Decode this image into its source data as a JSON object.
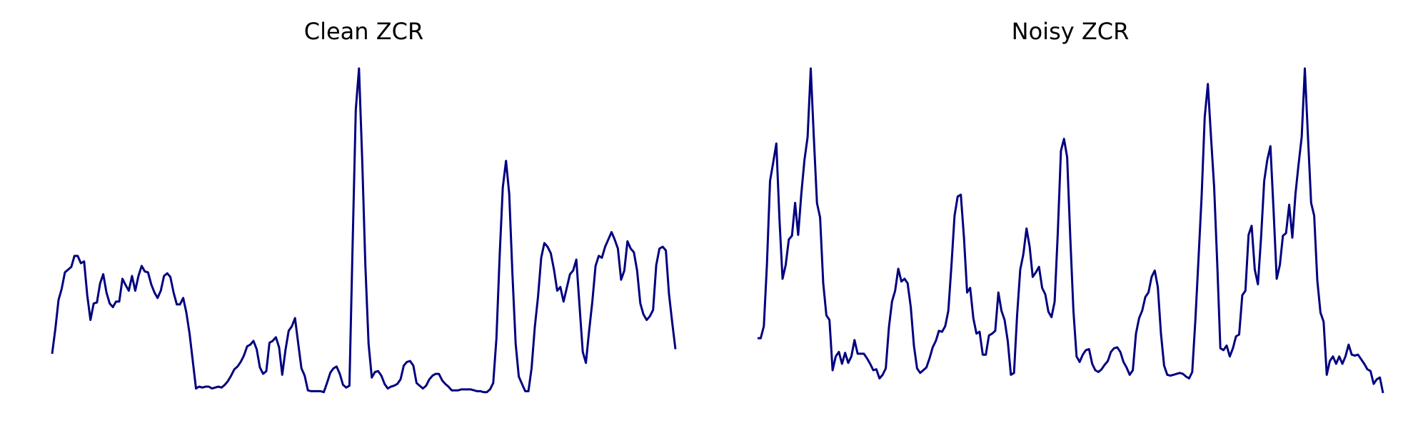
{
  "chart_data": [
    {
      "type": "line",
      "title": "Clean ZCR",
      "color": "#000080",
      "ylim": [
        0,
        355
      ],
      "values": [
        43,
        70,
        102,
        114,
        132,
        135,
        138,
        150,
        150,
        142,
        144,
        107,
        80,
        98,
        99,
        120,
        130,
        110,
        98,
        94,
        100,
        100,
        125,
        118,
        112,
        128,
        112,
        128,
        139,
        133,
        132,
        119,
        110,
        104,
        112,
        128,
        131,
        127,
        110,
        97,
        97,
        104,
        88,
        65,
        35,
        5,
        7,
        6,
        7,
        7,
        5,
        6,
        7,
        6,
        9,
        13,
        19,
        26,
        29,
        34,
        41,
        51,
        53,
        57,
        48,
        28,
        21,
        24,
        55,
        57,
        61,
        50,
        20,
        47,
        68,
        73,
        82,
        54,
        27,
        19,
        3,
        2,
        2,
        2,
        2,
        1,
        11,
        22,
        27,
        29,
        21,
        9,
        6,
        8,
        160,
        310,
        355,
        255,
        140,
        54,
        17,
        23,
        24,
        19,
        10,
        5,
        7,
        8,
        10,
        15,
        30,
        34,
        35,
        30,
        11,
        8,
        5,
        8,
        15,
        19,
        21,
        21,
        14,
        10,
        7,
        3,
        3,
        3,
        4,
        4,
        4,
        4,
        3,
        2,
        2,
        1,
        1,
        4,
        11,
        60,
        150,
        225,
        254,
        218,
        130,
        54,
        18,
        10,
        2,
        2,
        27,
        72,
        105,
        148,
        164,
        160,
        153,
        135,
        112,
        116,
        100,
        115,
        130,
        134,
        146,
        95,
        45,
        33,
        68,
        100,
        139,
        150,
        148,
        160,
        168,
        176,
        168,
        158,
        124,
        134,
        166,
        158,
        154,
        134,
        98,
        86,
        80,
        84,
        91,
        140,
        158,
        160,
        156,
        108,
        77,
        48
      ]
    },
    {
      "type": "line",
      "title": "Noisy ZCR",
      "color": "#000080",
      "ylim": [
        0,
        355
      ],
      "values": [
        60,
        60,
        73,
        140,
        232,
        252,
        273,
        190,
        125,
        140,
        168,
        172,
        208,
        173,
        218,
        255,
        280,
        355,
        280,
        208,
        192,
        120,
        85,
        80,
        25,
        40,
        45,
        32,
        44,
        33,
        40,
        58,
        43,
        43,
        43,
        38,
        32,
        25,
        26,
        16,
        20,
        27,
        72,
        100,
        112,
        136,
        122,
        125,
        120,
        94,
        52,
        27,
        22,
        25,
        28,
        38,
        50,
        57,
        68,
        67,
        73,
        90,
        140,
        194,
        215,
        217,
        170,
        110,
        115,
        82,
        65,
        67,
        42,
        42,
        63,
        65,
        68,
        110,
        90,
        80,
        57,
        20,
        22,
        85,
        135,
        152,
        180,
        160,
        127,
        132,
        138,
        115,
        108,
        89,
        83,
        100,
        175,
        265,
        278,
        258,
        170,
        90,
        40,
        34,
        42,
        47,
        48,
        32,
        25,
        23,
        26,
        31,
        35,
        45,
        49,
        50,
        45,
        34,
        28,
        20,
        25,
        65,
        82,
        90,
        105,
        110,
        127,
        134,
        116,
        65,
        30,
        20,
        19,
        20,
        21,
        22,
        21,
        18,
        16,
        23,
        80,
        147,
        216,
        302,
        338,
        280,
        225,
        140,
        49,
        47,
        52,
        40,
        49,
        62,
        64,
        107,
        112,
        173,
        183,
        135,
        119,
        170,
        232,
        255,
        270,
        200,
        125,
        140,
        172,
        175,
        206,
        170,
        218,
        250,
        280,
        355,
        280,
        208,
        194,
        123,
        88,
        78,
        20,
        35,
        40,
        32,
        40,
        32,
        40,
        53,
        42,
        41,
        42,
        37,
        32,
        26,
        24,
        10,
        15,
        17,
        0
      ]
    }
  ]
}
